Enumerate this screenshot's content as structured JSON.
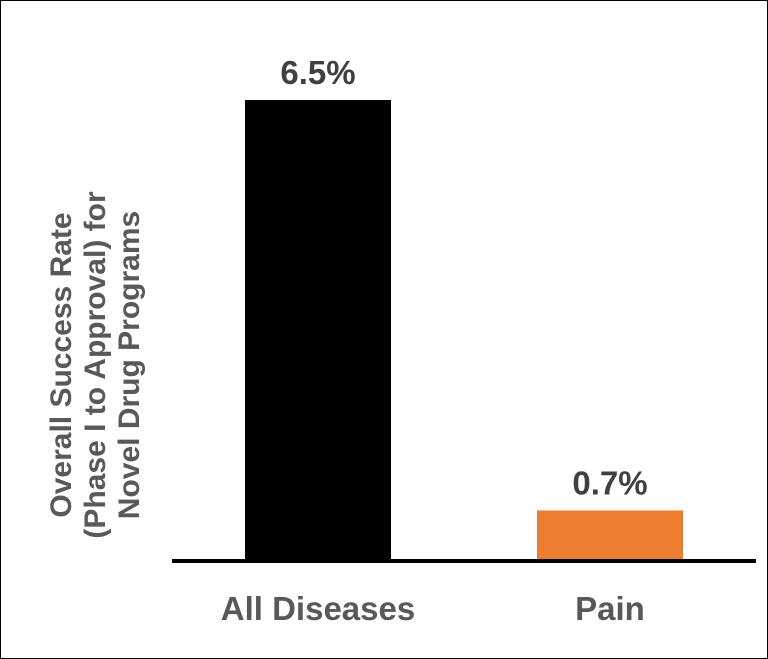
{
  "chart_data": {
    "type": "bar",
    "categories": [
      "All Diseases",
      "Pain"
    ],
    "values": [
      6.5,
      0.7
    ],
    "value_labels": [
      "6.5%",
      "0.7%"
    ],
    "colors": [
      "#000000",
      "#ED7D31"
    ],
    "title": "",
    "xlabel": "",
    "ylabel_lines": [
      "Overall Success Rate",
      "(Phase I to Approval) for",
      "Novel Drug Programs"
    ],
    "ylim": [
      0,
      6.5
    ],
    "grid": false,
    "legend": "none"
  }
}
